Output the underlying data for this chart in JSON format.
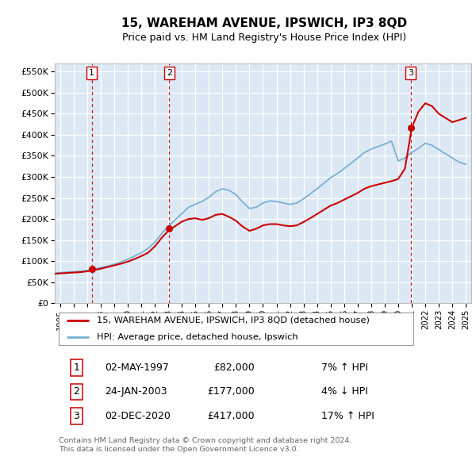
{
  "title": "15, WAREHAM AVENUE, IPSWICH, IP3 8QD",
  "subtitle": "Price paid vs. HM Land Registry's House Price Index (HPI)",
  "ylim": [
    0,
    570000
  ],
  "yticks": [
    0,
    50000,
    100000,
    150000,
    200000,
    250000,
    300000,
    350000,
    400000,
    450000,
    500000,
    550000
  ],
  "xlim_start": 1994.6,
  "xlim_end": 2025.4,
  "background_color": "#ffffff",
  "plot_bg_color": "#dce9f5",
  "grid_color": "#ffffff",
  "sale_dates": [
    1997.33,
    2003.07,
    2020.92
  ],
  "sale_prices": [
    82000,
    177000,
    417000
  ],
  "sale_labels": [
    "1",
    "2",
    "3"
  ],
  "legend_line1": "15, WAREHAM AVENUE, IPSWICH, IP3 8QD (detached house)",
  "legend_line2": "HPI: Average price, detached house, Ipswich",
  "table_rows": [
    [
      "1",
      "02-MAY-1997",
      "£82,000",
      "7% ↑ HPI"
    ],
    [
      "2",
      "24-JAN-2003",
      "£177,000",
      "4% ↓ HPI"
    ],
    [
      "3",
      "02-DEC-2020",
      "£417,000",
      "17% ↑ HPI"
    ]
  ],
  "footnote": "Contains HM Land Registry data © Crown copyright and database right 2024.\nThis data is licensed under the Open Government Licence v3.0.",
  "hpi_color": "#7bafd4",
  "sale_line_color": "#cc0000",
  "sale_dot_color": "#cc0000",
  "hpi_years": [
    1994.6,
    1995.0,
    1995.5,
    1996.0,
    1996.5,
    1997.0,
    1997.5,
    1998.0,
    1998.5,
    1999.0,
    1999.5,
    2000.0,
    2000.5,
    2001.0,
    2001.5,
    2002.0,
    2002.5,
    2003.0,
    2003.5,
    2004.0,
    2004.5,
    2005.0,
    2005.5,
    2006.0,
    2006.5,
    2007.0,
    2007.5,
    2008.0,
    2008.5,
    2009.0,
    2009.5,
    2010.0,
    2010.5,
    2011.0,
    2011.5,
    2012.0,
    2012.5,
    2013.0,
    2013.5,
    2014.0,
    2014.5,
    2015.0,
    2015.5,
    2016.0,
    2016.5,
    2017.0,
    2017.5,
    2018.0,
    2018.5,
    2019.0,
    2019.5,
    2020.0,
    2020.5,
    2021.0,
    2021.5,
    2022.0,
    2022.5,
    2023.0,
    2023.5,
    2024.0,
    2024.5,
    2025.0
  ],
  "hpi_values": [
    72000,
    73000,
    74000,
    75000,
    76000,
    78000,
    81000,
    85000,
    88000,
    93000,
    98000,
    105000,
    112000,
    120000,
    130000,
    145000,
    165000,
    183000,
    198000,
    213000,
    228000,
    235000,
    242000,
    252000,
    265000,
    272000,
    268000,
    258000,
    240000,
    225000,
    228000,
    238000,
    243000,
    242000,
    238000,
    235000,
    238000,
    248000,
    260000,
    272000,
    285000,
    298000,
    308000,
    320000,
    332000,
    345000,
    358000,
    366000,
    372000,
    378000,
    385000,
    338000,
    345000,
    358000,
    368000,
    380000,
    375000,
    365000,
    355000,
    345000,
    335000,
    330000
  ],
  "property_years": [
    1994.6,
    1995.0,
    1995.5,
    1996.0,
    1996.5,
    1997.0,
    1997.5,
    1998.0,
    1998.5,
    1999.0,
    1999.5,
    2000.0,
    2000.5,
    2001.0,
    2001.5,
    2002.0,
    2002.5,
    2003.0,
    2003.5,
    2004.0,
    2004.5,
    2005.0,
    2005.5,
    2006.0,
    2006.5,
    2007.0,
    2007.5,
    2008.0,
    2008.5,
    2009.0,
    2009.5,
    2010.0,
    2010.5,
    2011.0,
    2011.5,
    2012.0,
    2012.5,
    2013.0,
    2013.5,
    2014.0,
    2014.5,
    2015.0,
    2015.5,
    2016.0,
    2016.5,
    2017.0,
    2017.5,
    2018.0,
    2018.5,
    2019.0,
    2019.5,
    2020.0,
    2020.5,
    2021.0,
    2021.5,
    2022.0,
    2022.5,
    2023.0,
    2023.5,
    2024.0,
    2024.5,
    2025.0
  ],
  "property_values": [
    70000,
    71000,
    72000,
    73000,
    74000,
    76000,
    79000,
    82000,
    86000,
    90000,
    94000,
    99000,
    105000,
    112000,
    120000,
    135000,
    155000,
    172000,
    183000,
    194000,
    200000,
    202000,
    198000,
    202000,
    210000,
    212000,
    205000,
    196000,
    182000,
    172000,
    177000,
    185000,
    188000,
    188000,
    185000,
    183000,
    185000,
    193000,
    202000,
    212000,
    222000,
    232000,
    238000,
    246000,
    254000,
    262000,
    272000,
    278000,
    282000,
    286000,
    290000,
    295000,
    320000,
    417000,
    455000,
    475000,
    468000,
    450000,
    440000,
    430000,
    435000,
    440000
  ]
}
